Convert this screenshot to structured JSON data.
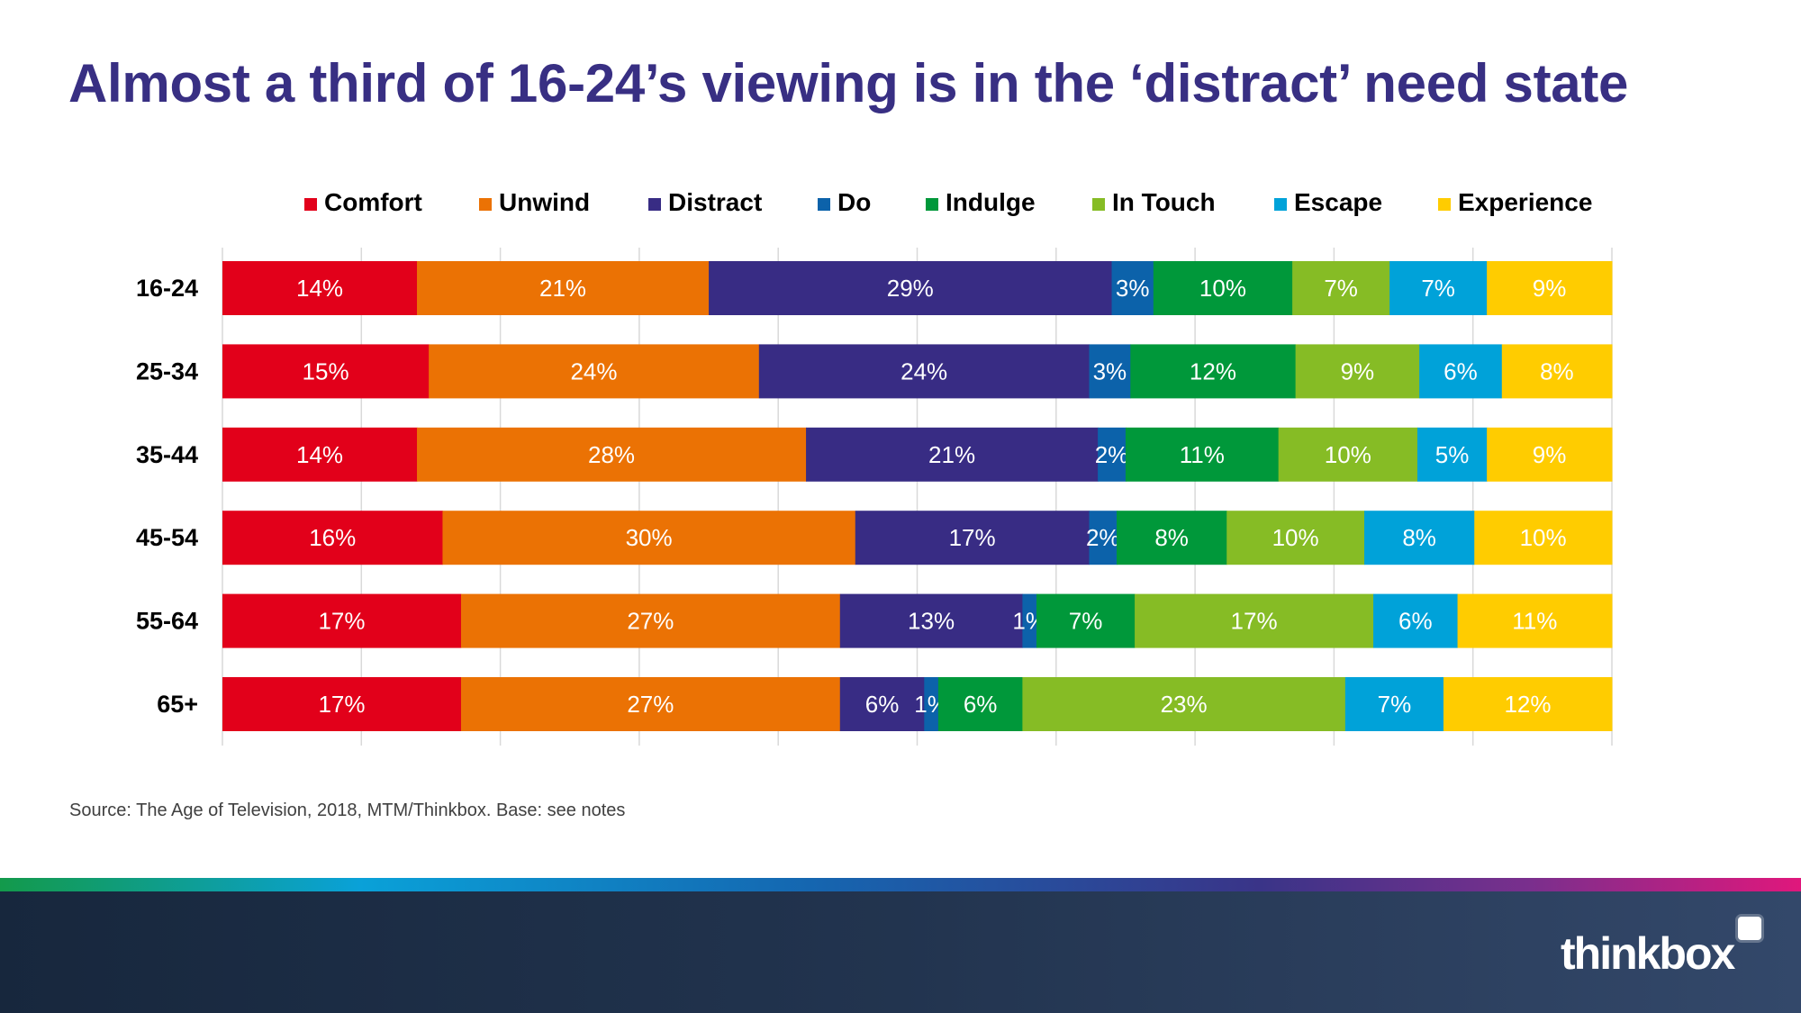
{
  "title": "Almost a third of 16-24’s viewing is in the ‘distract’ need state",
  "source": "Source: The Age of Television, 2018, MTM/Thinkbox.  Base: see notes",
  "logo": "thinkbox",
  "chart_data": {
    "type": "bar",
    "orientation": "horizontal",
    "stacked": true,
    "normalized": true,
    "categories": [
      "16-24",
      "25-34",
      "35-44",
      "45-54",
      "55-64",
      "65+"
    ],
    "series": [
      {
        "name": "Comfort",
        "color": "#e2001a",
        "values": [
          14,
          15,
          14,
          16,
          17,
          17
        ]
      },
      {
        "name": "Unwind",
        "color": "#eb7204",
        "values": [
          21,
          24,
          28,
          30,
          27,
          27
        ]
      },
      {
        "name": "Distract",
        "color": "#382c84",
        "values": [
          29,
          24,
          21,
          17,
          13,
          6
        ]
      },
      {
        "name": "Do",
        "color": "#0c62aa",
        "values": [
          3,
          3,
          2,
          2,
          1,
          1
        ]
      },
      {
        "name": "Indulge",
        "color": "#00983a",
        "values": [
          10,
          12,
          11,
          8,
          7,
          6
        ]
      },
      {
        "name": "In Touch",
        "color": "#86bc25",
        "values": [
          7,
          9,
          10,
          10,
          17,
          23
        ]
      },
      {
        "name": "Escape",
        "color": "#00a2d9",
        "values": [
          7,
          6,
          5,
          8,
          6,
          7
        ]
      },
      {
        "name": "Experience",
        "color": "#ffcc00",
        "values": [
          9,
          8,
          9,
          10,
          11,
          12
        ]
      }
    ],
    "value_suffix": "%",
    "legend_position": "top",
    "grid": true,
    "xlim": [
      0,
      100
    ]
  }
}
